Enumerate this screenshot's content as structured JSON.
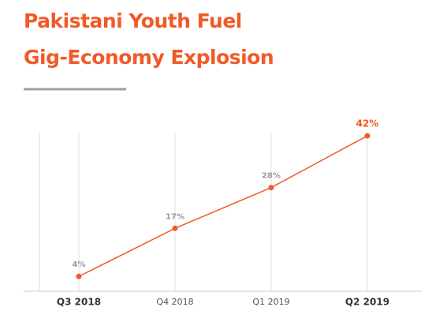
{
  "chart_data": {
    "type": "line",
    "title": [
      "Pakistani Youth Fuel",
      "Gig-Economy Explosion"
    ],
    "categories": [
      "Q3 2018",
      "Q4 2018",
      "Q1 2019",
      "Q2 2019"
    ],
    "values": [
      4,
      17,
      28,
      42
    ],
    "value_labels": [
      "4%",
      "17%",
      "28%",
      "42%"
    ],
    "color": "#f05a28",
    "ylim": [
      0,
      45
    ]
  }
}
